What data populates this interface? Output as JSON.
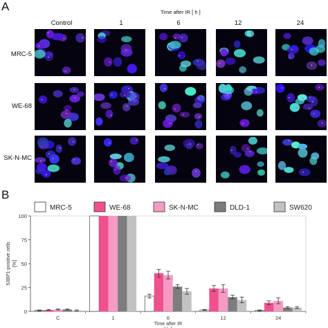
{
  "panel_a": {
    "letter": "A",
    "time_title": "Time after IR [ h ]",
    "columns": [
      "Control",
      "1",
      "6",
      "12",
      "24"
    ],
    "rows": [
      "MRC-5",
      "WE-68",
      "SK-N-MC"
    ]
  },
  "panel_b": {
    "letter": "B"
  },
  "chart_data": {
    "type": "bar",
    "categories": [
      "C",
      "1",
      "6",
      "12",
      "24"
    ],
    "xlabel": "Time after IR\n[ h ]",
    "ylabel": "53BP1-positive cells\n[%]",
    "ylim": [
      0,
      100
    ],
    "yticks": [
      0,
      25,
      50,
      75,
      100
    ],
    "grid": false,
    "legend_position": "top",
    "series": [
      {
        "name": "MRC-5",
        "color": "#ffffff",
        "values": [
          1,
          100,
          16,
          1.5,
          1
        ],
        "errors": [
          0.5,
          0,
          2,
          0.5,
          0.5
        ]
      },
      {
        "name": "WE-68",
        "color": "#f0508e",
        "values": [
          1.5,
          100,
          40,
          24,
          9
        ],
        "errors": [
          0.5,
          0,
          4,
          3,
          2
        ]
      },
      {
        "name": "SK-N-MC",
        "color": "#f59ac3",
        "values": [
          2,
          100,
          38,
          24,
          11
        ],
        "errors": [
          0.5,
          0,
          4,
          4,
          3
        ]
      },
      {
        "name": "DLD-1",
        "color": "#7d7d7d",
        "values": [
          2,
          100,
          26,
          15,
          4
        ],
        "errors": [
          0.5,
          0,
          2,
          2,
          1
        ]
      },
      {
        "name": "SW620",
        "color": "#c2c2c2",
        "values": [
          1,
          100,
          21,
          12,
          4
        ],
        "errors": [
          0.5,
          0,
          3,
          3,
          1
        ]
      }
    ]
  }
}
